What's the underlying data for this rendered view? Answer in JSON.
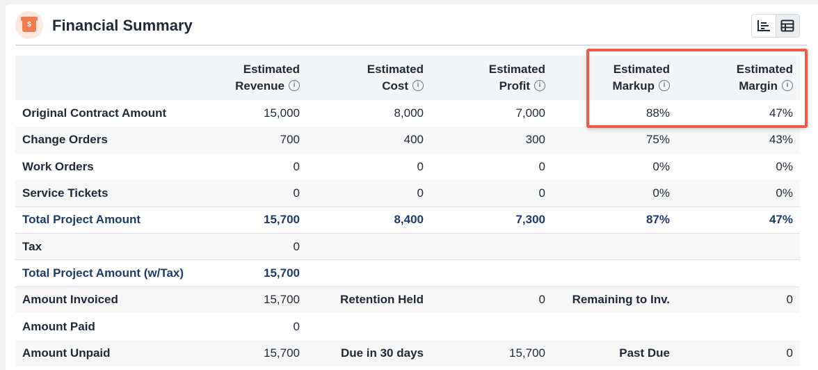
{
  "header": {
    "title": "Financial Summary",
    "icon_glyph": "$",
    "icon": "money-box-icon",
    "view_toggle": {
      "chart": "bar-chart-icon",
      "table": "table-icon",
      "active": "table"
    }
  },
  "table": {
    "columns": [
      {
        "line1": "",
        "line2": ""
      },
      {
        "line1": "Estimated",
        "line2": "Revenue"
      },
      {
        "line1": "Estimated",
        "line2": "Cost"
      },
      {
        "line1": "Estimated",
        "line2": "Profit"
      },
      {
        "line1": "Estimated",
        "line2": "Markup"
      },
      {
        "line1": "Estimated",
        "line2": "Margin"
      }
    ],
    "rows": [
      {
        "cells": [
          "Original Contract Amount",
          "15,000",
          "8,000",
          "7,000",
          "88%",
          "47%"
        ]
      },
      {
        "cells": [
          "Change Orders",
          "700",
          "400",
          "300",
          "75%",
          "43%"
        ]
      },
      {
        "cells": [
          "Work Orders",
          "0",
          "0",
          "0",
          "0%",
          "0%"
        ]
      },
      {
        "cells": [
          "Service Tickets",
          "0",
          "0",
          "0",
          "0%",
          "0%"
        ]
      },
      {
        "cells": [
          "Total Project Amount",
          "15,700",
          "8,400",
          "7,300",
          "87%",
          "47%"
        ]
      },
      {
        "cells": [
          "Tax",
          "0",
          "",
          "",
          "",
          ""
        ]
      },
      {
        "cells": [
          "Total Project Amount (w/Tax)",
          "15,700",
          "",
          "",
          "",
          ""
        ]
      },
      {
        "cells": [
          "Amount Invoiced",
          "15,700",
          "Retention Held",
          "0",
          "Remaining to Inv.",
          "0"
        ]
      },
      {
        "cells": [
          "Amount Paid",
          "0",
          "",
          "",
          "",
          ""
        ]
      },
      {
        "cells": [
          "Amount Unpaid",
          "15,700",
          "Due in 30 days",
          "15,700",
          "Past Due",
          "0"
        ]
      }
    ]
  },
  "colors": {
    "accent": "#f07c52",
    "total_text": "#1d3a6b",
    "highlight": "#ef5b4d"
  }
}
